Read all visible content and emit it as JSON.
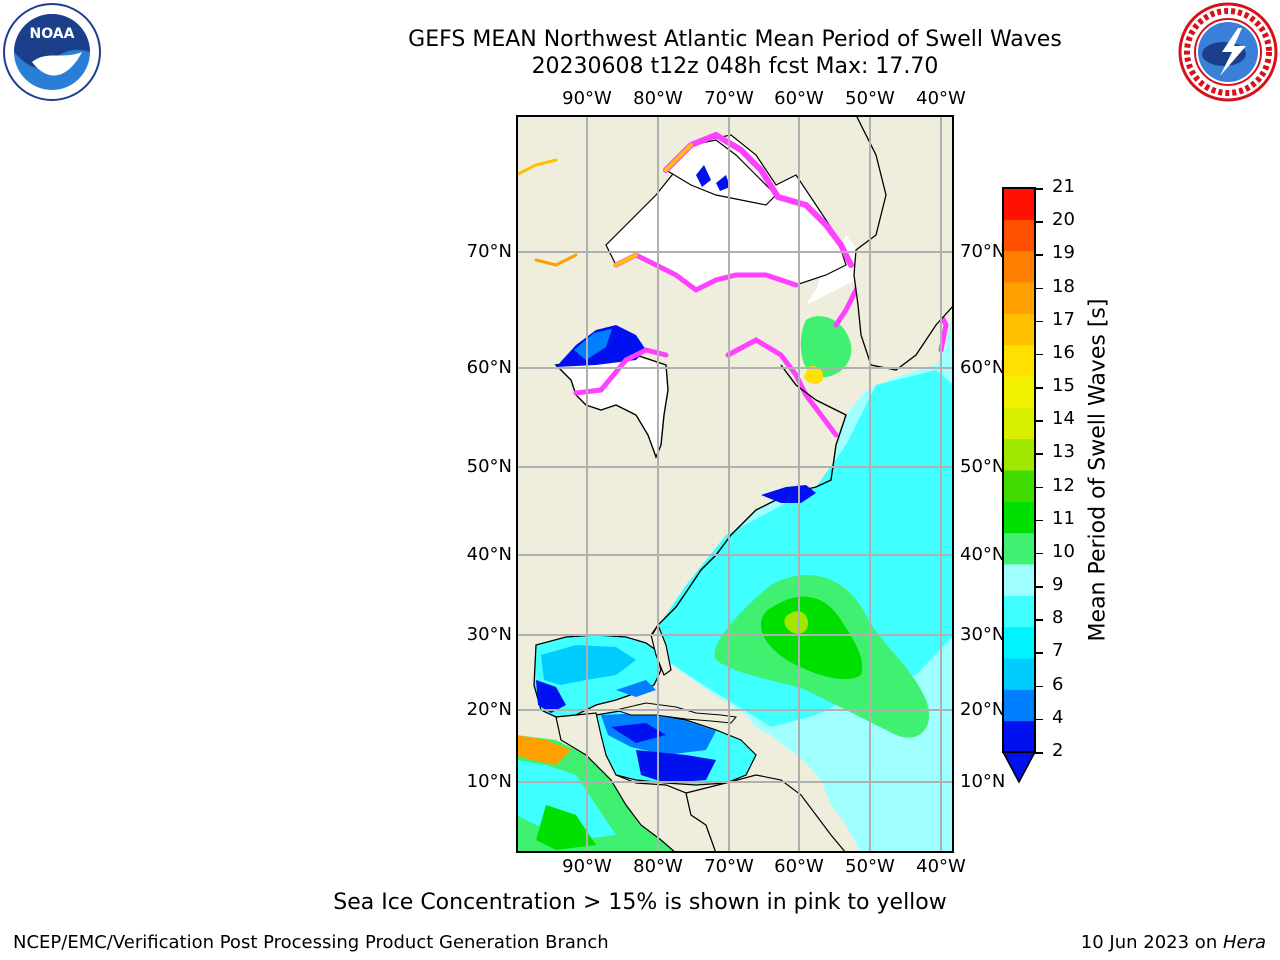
{
  "header": {
    "title_line1": "GEFS MEAN Northwest Atlantic Mean Period of Swell Waves",
    "title_line2": "20230608 t12z 048h fcst   Max: 17.70"
  },
  "logos": {
    "left": "noaa-logo",
    "right": "nws-logo"
  },
  "map": {
    "lon_labels": [
      "90°W",
      "80°W",
      "70°W",
      "60°W",
      "50°W",
      "40°W"
    ],
    "lat_labels": [
      "70°N",
      "60°N",
      "50°N",
      "40°N",
      "30°N",
      "20°N",
      "10°N"
    ],
    "colors": {
      "land": "#efeedd",
      "ice_free_white": "#ffffff",
      "grid": "#b0b0b0",
      "coast": "#000000"
    }
  },
  "colorbar": {
    "title": "Mean Period of Swell Waves [s]",
    "ticks": [
      "2",
      "4",
      "6",
      "7",
      "8",
      "9",
      "10",
      "11",
      "12",
      "13",
      "14",
      "15",
      "16",
      "17",
      "18",
      "19",
      "20",
      "21"
    ],
    "colors": [
      "#0010ee",
      "#0080ff",
      "#00ccff",
      "#00f4ff",
      "#40ffff",
      "#a0ffff",
      "#40f070",
      "#00e000",
      "#40dc00",
      "#a0e800",
      "#d8f000",
      "#f0f000",
      "#ffe000",
      "#ffc000",
      "#ffa000",
      "#ff8000",
      "#ff5000",
      "#ff1000"
    ]
  },
  "note": "Sea Ice Concentration > 15% is shown in pink to yellow",
  "footer": {
    "left": "NCEP/EMC/Verification Post Processing Product Generation Branch",
    "date": "10 Jun 2023 on ",
    "host": "Hera"
  }
}
